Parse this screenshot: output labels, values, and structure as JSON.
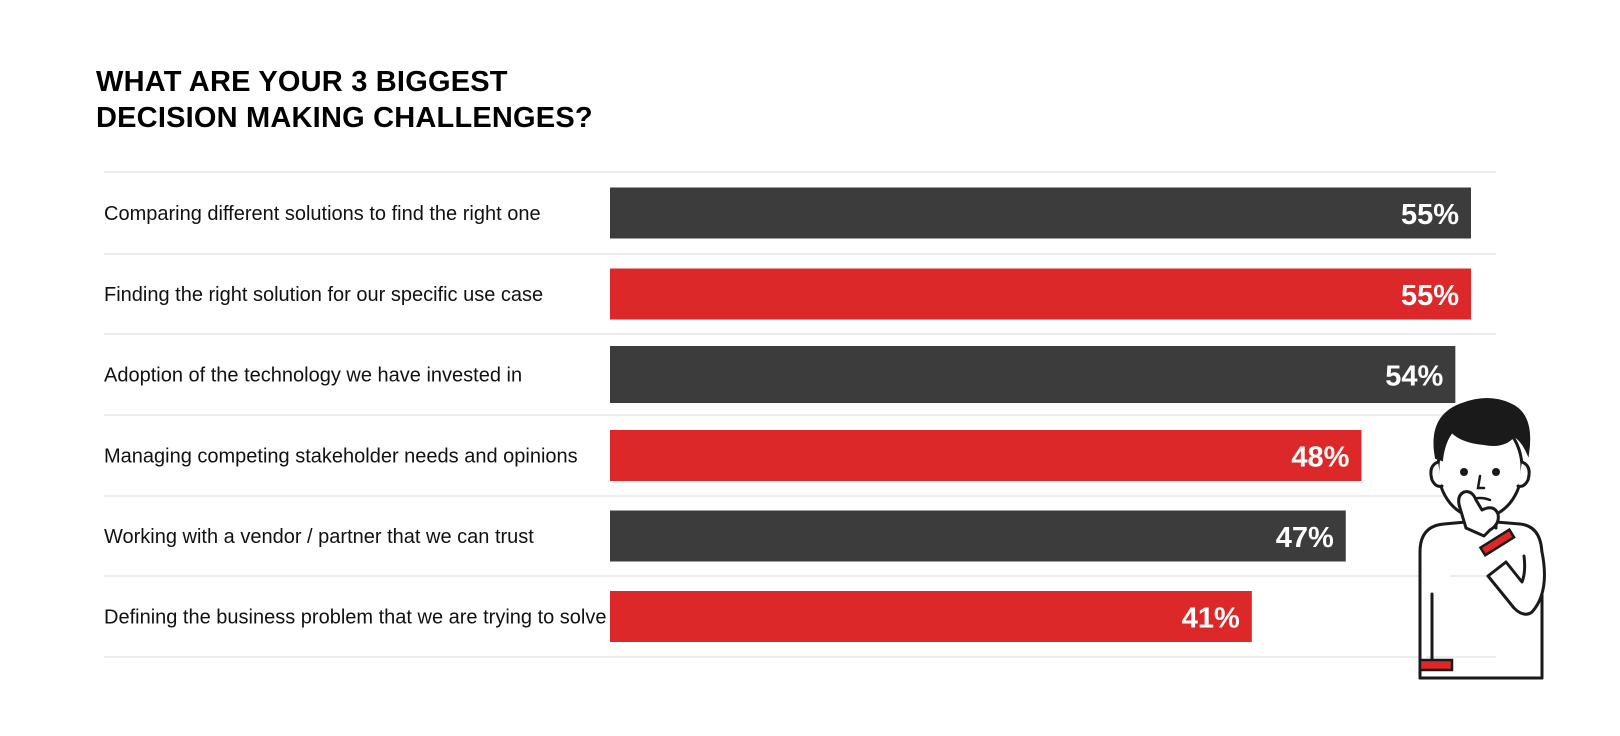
{
  "title_lines": [
    "WHAT ARE YOUR 3 BIGGEST",
    "DECISION MAKING CHALLENGES?"
  ],
  "chart_data": {
    "type": "bar",
    "orientation": "horizontal",
    "categories": [
      "Comparing different solutions to find the right one",
      "Finding the right solution for our specific use case",
      "Adoption of the technology we have invested in",
      "Managing competing stakeholder needs and opinions",
      "Working with a vendor / partner that we can trust",
      "Defining the business problem that we are trying to solve"
    ],
    "values": [
      55,
      55,
      54,
      48,
      47,
      41
    ],
    "value_labels": [
      "55%",
      "55%",
      "54%",
      "48%",
      "47%",
      "41%"
    ],
    "title": "WHAT ARE YOUR 3 BIGGEST DECISION MAKING CHALLENGES?",
    "xlabel": "",
    "ylabel": "",
    "unit": "%",
    "xlim": [
      0,
      55
    ],
    "grid": false,
    "legend": "none"
  },
  "colors": {
    "dark_bar": "#3c3c3c",
    "red_bar": "#dc2828",
    "divider": "#e6e6e6",
    "value_text": "#ffffff",
    "label_text": "#111111",
    "figure_stroke": "#1a1a1a"
  },
  "illustration": {
    "icon": "thinking-person-icon"
  }
}
